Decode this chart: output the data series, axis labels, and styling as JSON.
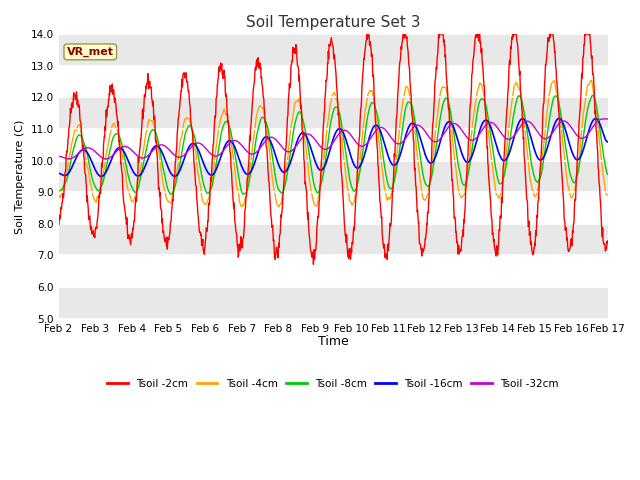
{
  "title": "Soil Temperature Set 3",
  "xlabel": "Time",
  "ylabel": "Soil Temperature (C)",
  "ylim": [
    5.0,
    14.0
  ],
  "yticks": [
    5.0,
    6.0,
    7.0,
    8.0,
    9.0,
    10.0,
    11.0,
    12.0,
    13.0,
    14.0
  ],
  "xtick_labels": [
    "Feb 2",
    "Feb 3",
    "Feb 4",
    "Feb 5",
    "Feb 6",
    "Feb 7",
    "Feb 8",
    "Feb 9",
    "Feb 10",
    "Feb 11",
    "Feb 12",
    "Feb 13",
    "Feb 14",
    "Feb 15",
    "Feb 16",
    "Feb 17"
  ],
  "colors": {
    "Tsoil -2cm": "#ff0000",
    "Tsoil -4cm": "#ffa500",
    "Tsoil -8cm": "#00cc00",
    "Tsoil -16cm": "#0000ff",
    "Tsoil -32cm": "#cc00cc"
  },
  "legend_label": "VR_met",
  "bg_color": "#ffffff",
  "plot_bg": "#ffffff",
  "band_color": "#e8e8e8",
  "n_points": 1440,
  "days": 15,
  "figsize": [
    6.4,
    4.8
  ],
  "dpi": 100
}
